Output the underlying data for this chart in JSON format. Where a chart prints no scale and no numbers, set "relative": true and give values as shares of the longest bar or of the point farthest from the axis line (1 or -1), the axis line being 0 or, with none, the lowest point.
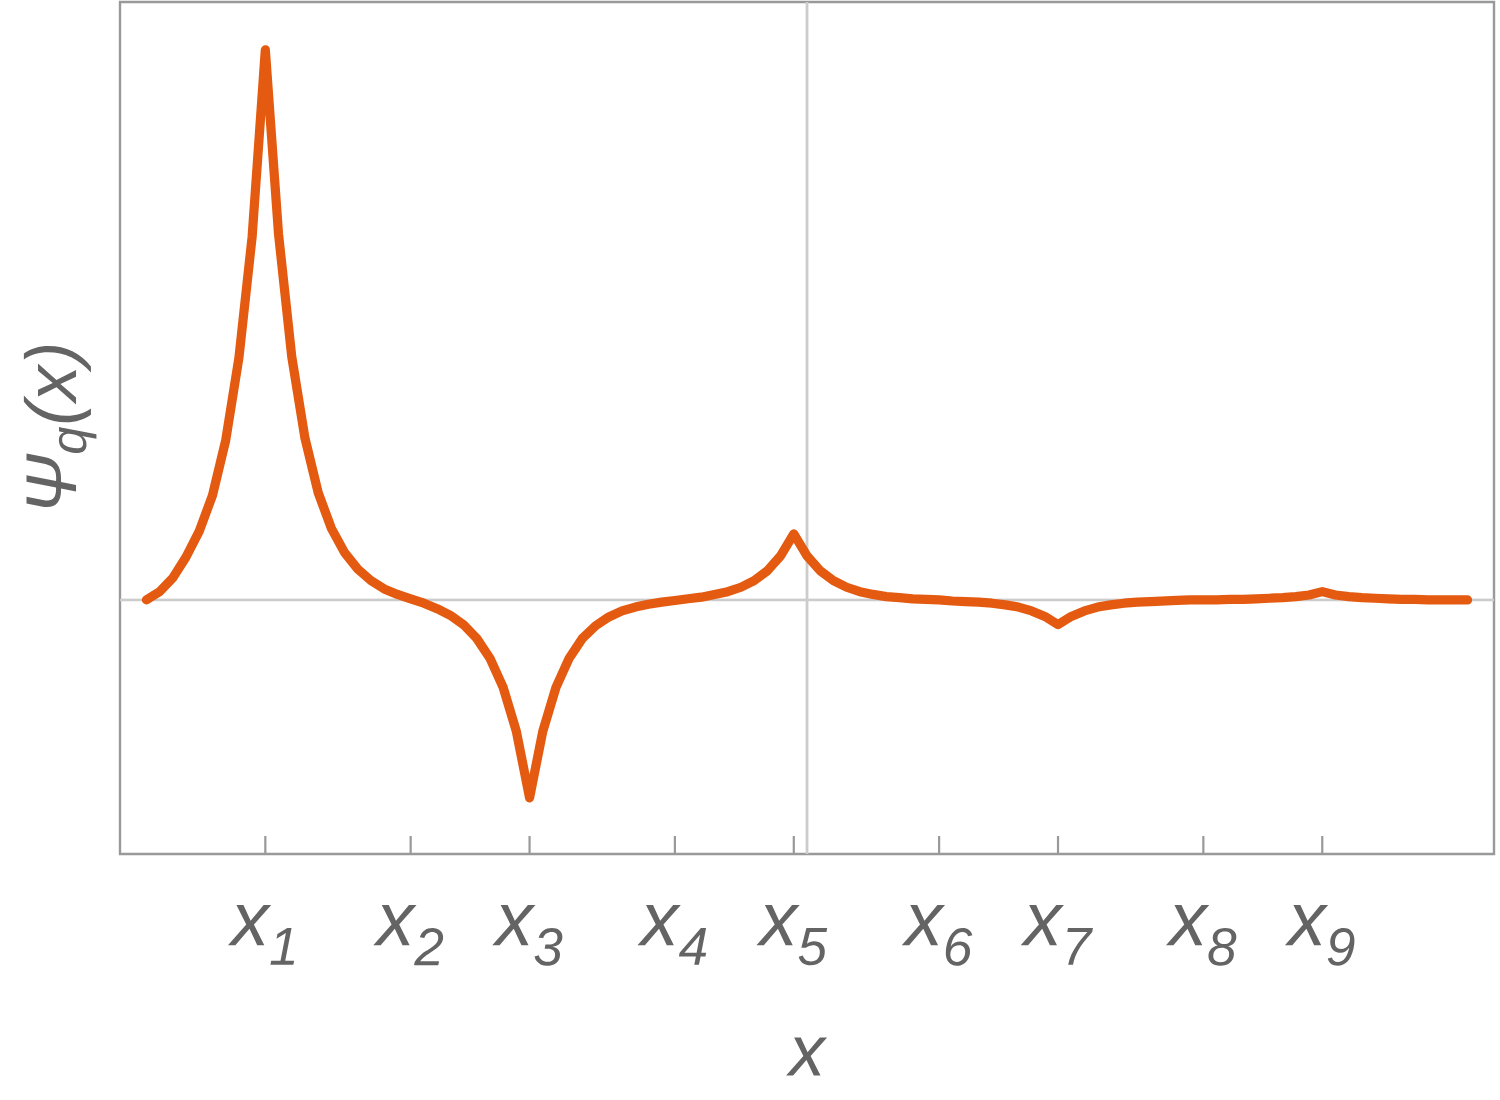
{
  "chart_data": {
    "type": "line",
    "xlabel": "x",
    "ylabel": "Ψ$_{q}$(x)",
    "relative": true,
    "tick_labels": "x",
    "color": "#e35a10",
    "categories": [
      null,
      null,
      null,
      null,
      null,
      null,
      null,
      null,
      null,
      "x$_{1}$",
      null,
      null,
      null,
      null,
      null,
      null,
      null,
      null,
      null,
      null,
      "x$_{2}$",
      null,
      null,
      null,
      null,
      null,
      null,
      null,
      null,
      "x$_{3}$",
      null,
      null,
      null,
      null,
      null,
      null,
      null,
      null,
      null,
      null,
      "x$_{4}$",
      null,
      null,
      null,
      null,
      null,
      null,
      null,
      null,
      "x$_{5}$",
      null,
      null,
      null,
      null,
      null,
      null,
      null,
      null,
      null,
      null,
      "x$_{6}$",
      null,
      null,
      null,
      null,
      null,
      null,
      null,
      null,
      "x$_{7}$",
      null,
      null,
      null,
      null,
      null,
      null,
      null,
      null,
      null,
      null,
      "x$_{8}$",
      null,
      null,
      null,
      null,
      null,
      null,
      null,
      null,
      "x$_{9}$",
      null,
      null,
      null,
      null,
      null,
      null,
      null,
      null,
      null,
      null,
      null
    ],
    "ref_lines": [
      {
        "axis": "y",
        "value": 0,
        "color": "#cccccc"
      }
    ],
    "values": [
      0,
      0.015,
      0.04,
      0.078,
      0.125,
      0.19,
      0.29,
      0.44,
      0.66,
      1,
      0.665,
      0.442,
      0.294,
      0.195,
      0.13,
      0.086,
      0.056,
      0.035,
      0.02,
      0.01,
      0.002,
      -0.006,
      -0.016,
      -0.028,
      -0.045,
      -0.07,
      -0.106,
      -0.159,
      -0.239,
      -0.36,
      -0.239,
      -0.159,
      -0.106,
      -0.07,
      -0.047,
      -0.031,
      -0.02,
      -0.013,
      -0.008,
      -0.004,
      -0.001,
      0.002,
      0.005,
      0.01,
      0.015,
      0.023,
      0.035,
      0.053,
      0.08,
      0.12,
      0.08,
      0.053,
      0.035,
      0.023,
      0.015,
      0.01,
      0.006,
      0.004,
      0.002,
      0.001,
      0,
      -0.002,
      -0.003,
      -0.004,
      -0.006,
      -0.009,
      -0.013,
      -0.02,
      -0.03,
      -0.045,
      -0.03,
      -0.02,
      -0.013,
      -0.009,
      -0.006,
      -0.004,
      -0.003,
      -0.002,
      -0.001,
      0,
      0,
      0,
      0.001,
      0.001,
      0.002,
      0.003,
      0.004,
      0.006,
      0.009,
      0.015,
      0.009,
      0.006,
      0.004,
      0.003,
      0.002,
      0.001,
      0.001,
      0,
      0,
      0,
      0
    ]
  }
}
